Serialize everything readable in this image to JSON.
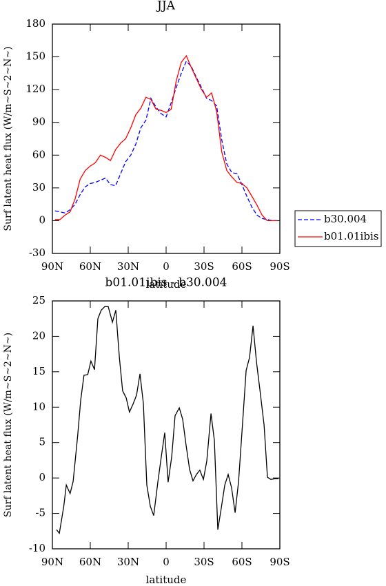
{
  "chart_data": [
    {
      "type": "line",
      "title": "JJA",
      "x_label": "latitude",
      "y_label": "Surf latent heat flux (W/m~S~2~N~)",
      "x": [
        88,
        84,
        80,
        76,
        72,
        68,
        64,
        60,
        56,
        52,
        48,
        44,
        40,
        36,
        32,
        28,
        24,
        20,
        16,
        12,
        8,
        4,
        0,
        -4,
        -8,
        -12,
        -16,
        -20,
        -24,
        -28,
        -32,
        -36,
        -40,
        -44,
        -48,
        -52,
        -56,
        -60,
        -64,
        -68,
        -72,
        -76,
        -80,
        -84,
        -88
      ],
      "series": [
        {
          "name": "b30.004",
          "color": "#0000ff",
          "dashed": true,
          "values": [
            9,
            8,
            7,
            10,
            15,
            24,
            31,
            34,
            35,
            37,
            39,
            33,
            32,
            43,
            54,
            60,
            70,
            85,
            92,
            112,
            104,
            98,
            95,
            108,
            122,
            135,
            146,
            141,
            131,
            122,
            112,
            110,
            105,
            74,
            52,
            44,
            43,
            33,
            22,
            12,
            5,
            2,
            1,
            0,
            0
          ]
        },
        {
          "name": "b01.01ibis",
          "color": "#ff0000",
          "dashed": false,
          "values": [
            1,
            1,
            5,
            8,
            20,
            38,
            46,
            50,
            53,
            60,
            58,
            55,
            65,
            71,
            75,
            85,
            97,
            103,
            113,
            111,
            102,
            101,
            99,
            102,
            128,
            145,
            151,
            140,
            130,
            120,
            113,
            117,
            100,
            63,
            46,
            40,
            35,
            34,
            30,
            22,
            14,
            5,
            0,
            0,
            0
          ]
        }
      ],
      "xlim": [
        90,
        -90
      ],
      "ylim": [
        -30,
        180
      ],
      "xticks": [
        {
          "value": 90,
          "label": "90N"
        },
        {
          "value": 60,
          "label": "60N"
        },
        {
          "value": 30,
          "label": "30N"
        },
        0,
        {
          "value": -30,
          "label": "30S"
        },
        {
          "value": -60,
          "label": "60S"
        },
        {
          "value": -90,
          "label": "90S"
        }
      ],
      "yticks": [
        -30,
        0,
        30,
        60,
        90,
        120,
        150,
        180
      ],
      "legend": "right"
    },
    {
      "type": "line",
      "title": "b01.01ibis - b30.004",
      "x_label": "latitude",
      "y_label": "Surf latent heat flux (W/m~S~2~N~)",
      "x": [
        86.7,
        84.5,
        81,
        79,
        76,
        73.6,
        70,
        67.6,
        65,
        62,
        59.5,
        56.7,
        54,
        51.3,
        48.5,
        45.8,
        42.5,
        39.8,
        37,
        34.4,
        31.6,
        29,
        26,
        23.4,
        20.7,
        18,
        15.3,
        12.5,
        9.8,
        6.5,
        3.8,
        1.1,
        -1.6,
        -4.4,
        -7.1,
        -10.4,
        -13.1,
        -15.8,
        -18.6,
        -21.3,
        -24,
        -26.7,
        -29.5,
        -32.2,
        -35.5,
        -38.2,
        -40.9,
        -43.7,
        -46.4,
        -49.1,
        -51.8,
        -54.6,
        -57.3,
        -60.6,
        -63.3,
        -66,
        -68.8,
        -71.5,
        -74.2,
        -77.5,
        -80.2,
        -82.9,
        -86.2,
        -88.9
      ],
      "series": [
        {
          "color": "#000000",
          "dashed": false,
          "values": [
            -7.3,
            -7.8,
            -4,
            -1,
            -2.2,
            -0.5,
            6,
            11,
            14.5,
            14.6,
            16.5,
            15.3,
            22.5,
            23.7,
            24.2,
            24.2,
            22,
            23.7,
            17,
            12.3,
            11.3,
            9.3,
            10.5,
            11.7,
            14.7,
            10.5,
            -1,
            -4,
            -5.3,
            -0.5,
            3,
            6.4,
            -0.6,
            3,
            8.8,
            9.9,
            8.3,
            4.6,
            1.2,
            -0.4,
            0.5,
            1.1,
            -0.2,
            2.4,
            9.1,
            5.3,
            -7.3,
            -4.2,
            -1,
            0.5,
            -1.4,
            -4.9,
            -0.5,
            8,
            15.2,
            17,
            21.5,
            16.4,
            12.5,
            7.5,
            0.1,
            -0.2,
            -0.1,
            -0.1
          ]
        }
      ],
      "xlim": [
        90,
        -90
      ],
      "ylim": [
        -10,
        25
      ],
      "xticks": [
        {
          "value": 90,
          "label": "90N"
        },
        {
          "value": 60,
          "label": "60N"
        },
        {
          "value": 30,
          "label": "30N"
        },
        0,
        {
          "value": -30,
          "label": "30S"
        },
        {
          "value": -60,
          "label": "60S"
        },
        {
          "value": -90,
          "label": "90S"
        }
      ],
      "yticks": [
        -10,
        -5,
        0,
        5,
        10,
        15,
        20,
        25
      ]
    }
  ]
}
